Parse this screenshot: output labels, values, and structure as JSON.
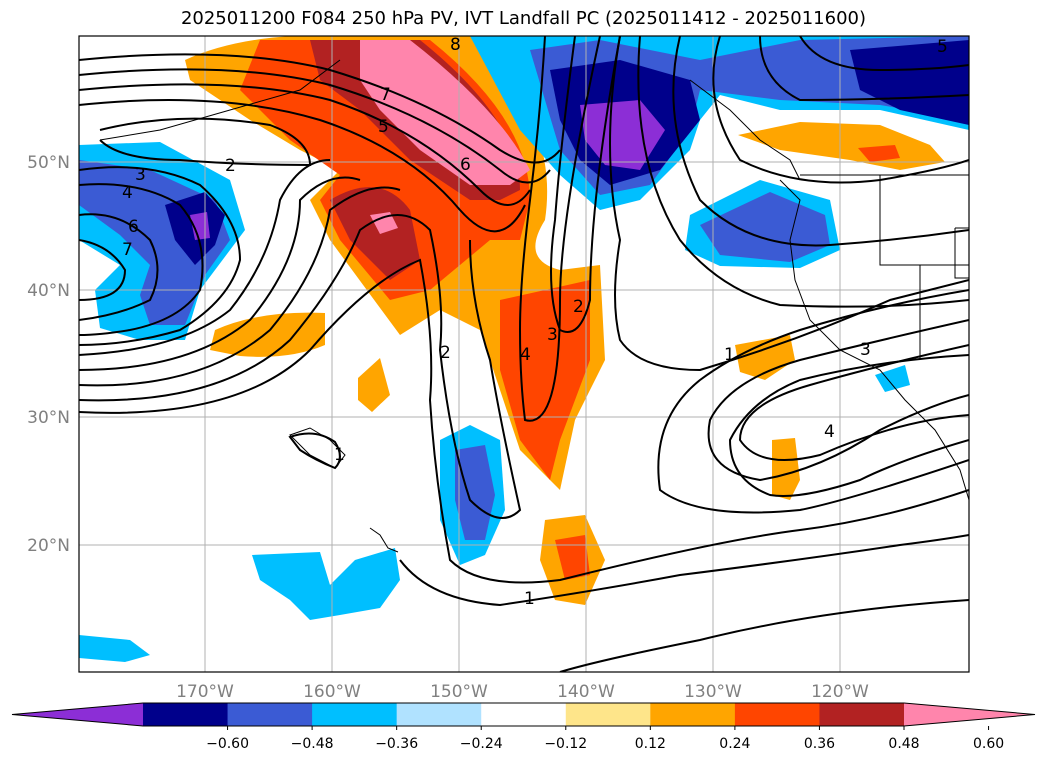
{
  "title": "2025011200 F084 250 hPa PV, IVT Landfall PC (2025011412 - 2025011600)",
  "lat_labels": [
    "50°N",
    "40°N",
    "30°N",
    "20°N"
  ],
  "lon_labels": [
    "170°W",
    "160°W",
    "150°W",
    "140°W",
    "130°W",
    "120°W"
  ],
  "colorbar": {
    "colors": [
      "#8c2ed6",
      "#00008b",
      "#3b5bd4",
      "#00bfff",
      "#b0e2ff",
      "#ffffff",
      "#fee58a",
      "#ffa500",
      "#ff4500",
      "#b22222",
      "#ff85ac"
    ],
    "tick_labels": [
      "−0.60",
      "−0.48",
      "−0.36",
      "−0.24",
      "−0.12",
      "0.12",
      "0.24",
      "0.36",
      "0.48",
      "0.60"
    ]
  },
  "contour_labels": [
    "8",
    "7",
    "5",
    "6",
    "3",
    "2",
    "4",
    "6",
    "7",
    "2",
    "4",
    "3",
    "2",
    "1",
    "3",
    "4",
    "1",
    "1",
    "5"
  ]
}
